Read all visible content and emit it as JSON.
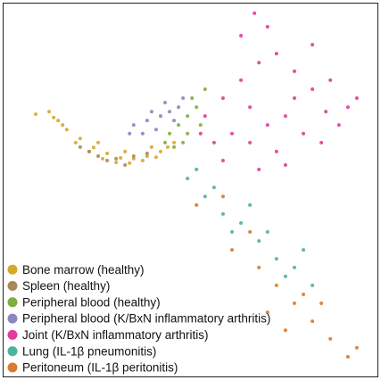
{
  "chart_data": {
    "type": "scatter",
    "xlim": [
      0,
      100
    ],
    "ylim": [
      0,
      100
    ],
    "legend": "lower left",
    "series": [
      {
        "name": "Bone marrow (healthy)",
        "color": "#d6a92b",
        "x": [
          8.6,
          13.4,
          16.9,
          20.5,
          24.1,
          27.7,
          31.3,
          34.8,
          38.4,
          42.0,
          45.6,
          15.8,
          19.3,
          22.9,
          26.5,
          30.1,
          33.7,
          37.2,
          40.8,
          12.2,
          25.3,
          32.5,
          39.6,
          43.9,
          14.6
        ],
        "values": [
          70.4,
          69.5,
          66.3,
          63.9,
          61.5,
          59.9,
          58.7,
          58.5,
          59.2,
          60.4,
          62.8,
          67.5,
          62.8,
          60.4,
          58.5,
          57.5,
          57.3,
          58.0,
          58.9,
          71.1,
          62.8,
          60.4,
          61.6,
          61.6,
          68.7
        ]
      },
      {
        "name": "Spleen (healthy)",
        "color": "#a8895a",
        "x": [
          22.9,
          30.1,
          34.8,
          27.7,
          38.4,
          20.5,
          32.5,
          25.3
        ],
        "values": [
          60.4,
          58.5,
          59.2,
          58.0,
          59.9,
          61.6,
          56.8,
          59.2
        ]
      },
      {
        "name": "Peripheral blood (healthy)",
        "color": "#7fae3f",
        "x": [
          44.4,
          46.8,
          49.2,
          51.6,
          48.0,
          50.4,
          45.6,
          52.7,
          53.9,
          49.2,
          43.2
        ],
        "values": [
          65.2,
          67.5,
          69.9,
          72.3,
          62.8,
          74.7,
          61.6,
          67.5,
          77.1,
          65.2,
          62.8
        ]
      },
      {
        "name": "Peripheral blood (K/BxN inflammatory arthritis)",
        "color": "#8b86c2",
        "x": [
          34.8,
          38.4,
          42.0,
          44.4,
          46.8,
          40.8,
          37.2,
          45.6,
          43.2,
          48.0,
          39.6,
          33.7
        ],
        "values": [
          67.5,
          68.7,
          69.9,
          71.1,
          72.3,
          66.3,
          65.2,
          68.7,
          73.5,
          74.7,
          71.1,
          65.2
        ]
      },
      {
        "name": "Joint (K/BxN inflammatory arthritis)",
        "color": "#e03c9a",
        "x": [
          53.9,
          58.7,
          63.5,
          68.3,
          73.0,
          77.8,
          82.6,
          87.4,
          92.1,
          70.6,
          65.9,
          61.1,
          75.4,
          80.2,
          85.0,
          89.7,
          73.0,
          58.7,
          65.9,
          77.8,
          63.5,
          70.6,
          82.6,
          94.5,
          56.3,
          68.3,
          75.4,
          86.2,
          52.7,
          67.1
        ],
        "values": [
          69.9,
          74.7,
          79.5,
          84.2,
          86.6,
          81.9,
          77.1,
          79.5,
          72.3,
          67.5,
          62.8,
          65.2,
          69.9,
          65.2,
          62.8,
          67.5,
          60.4,
          58.0,
          72.3,
          74.7,
          91.4,
          93.8,
          89.0,
          74.7,
          62.8,
          55.6,
          56.8,
          71.1,
          65.2,
          97.4
        ]
      },
      {
        "name": "Lung (IL-1β pneumonitis)",
        "color": "#4db39a",
        "x": [
          49.2,
          53.9,
          58.7,
          63.5,
          68.3,
          73.0,
          77.8,
          82.6,
          65.9,
          56.3,
          70.6,
          75.4,
          61.1,
          80.2,
          51.6
        ],
        "values": [
          53.2,
          48.4,
          43.7,
          41.3,
          36.5,
          31.7,
          29.4,
          24.6,
          46.1,
          50.8,
          38.9,
          27.0,
          38.9,
          34.1,
          55.6
        ]
      },
      {
        "name": "Peritoneum (IL-1β peritonitis)",
        "color": "#d97a2e",
        "x": [
          51.6,
          61.1,
          68.3,
          73.0,
          77.8,
          82.6,
          87.4,
          92.1,
          70.6,
          80.2,
          65.9,
          85.0,
          75.4,
          58.7,
          94.5
        ],
        "values": [
          46.1,
          34.1,
          29.4,
          24.6,
          19.8,
          15.0,
          10.3,
          5.5,
          17.4,
          22.2,
          38.9,
          19.8,
          12.6,
          48.4,
          7.9
        ]
      }
    ]
  }
}
